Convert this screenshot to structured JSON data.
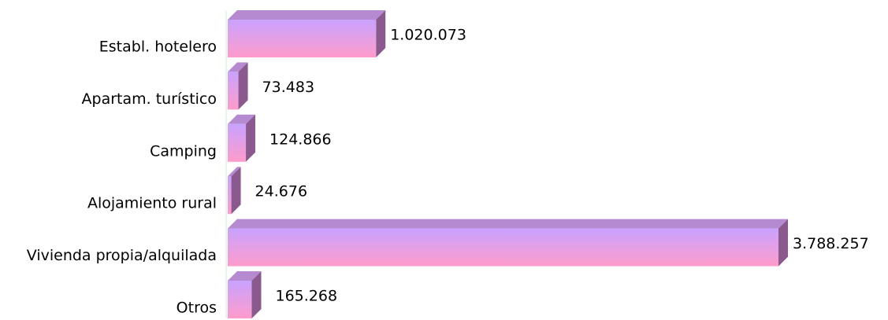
{
  "chart_data": {
    "type": "barh",
    "categories": [
      "Establ. hotelero",
      "Apartam. turístico",
      "Camping",
      "Alojamiento rural",
      "Vivienda propia/alquilada",
      "Otros"
    ],
    "values": [
      1020073,
      73483,
      124866,
      24676,
      3788257,
      165268
    ],
    "value_labels": [
      "1.020.073",
      "73.483",
      "124.866",
      "24.676",
      "3.788.257",
      "165.268"
    ],
    "gradient": [
      "#c8a2ff",
      "#ff9ccb"
    ]
  }
}
